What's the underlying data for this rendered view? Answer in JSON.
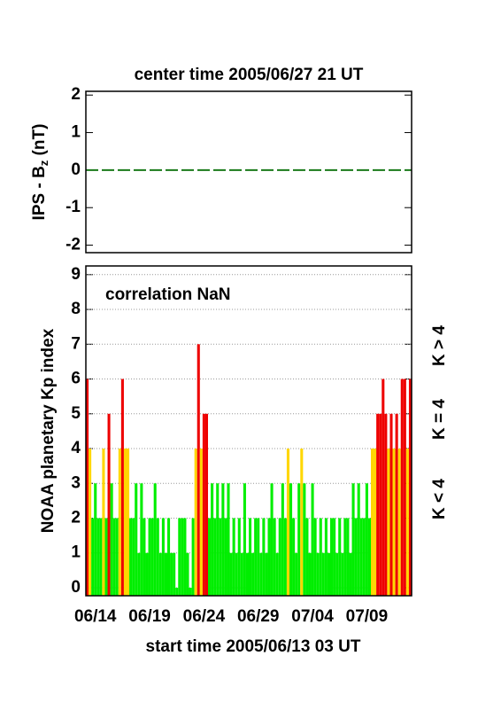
{
  "chart_data": [
    {
      "type": "line",
      "title": "center time 2005/06/27 21 UT",
      "ylabel": {
        "prefix": "IPS - B",
        "sub": "z",
        "suffix": " (nT)"
      },
      "x": [
        0,
        30
      ],
      "series": [
        {
          "color": "#1a7a1a",
          "values": [
            0,
            0
          ]
        }
      ],
      "xlim": [
        0,
        30
      ],
      "ylim": [
        -2.2,
        2.1
      ],
      "yticks": [
        -2,
        -1,
        0,
        1,
        2
      ],
      "grid": false
    },
    {
      "type": "bar",
      "annotation": "correlation NaN",
      "ylabel": "NOAA planetary Kp index",
      "xlabel": "start time 2005/06/13 03 UT",
      "bar_width": 0.25,
      "x": [
        0,
        0.25,
        0.5,
        0.75,
        1,
        1.25,
        1.5,
        1.75,
        2,
        2.25,
        2.5,
        2.75,
        3,
        3.25,
        3.5,
        3.75,
        4,
        4.25,
        4.5,
        4.75,
        5,
        5.25,
        5.5,
        5.75,
        6,
        6.25,
        6.5,
        6.75,
        7,
        7.25,
        7.5,
        7.75,
        8,
        8.25,
        8.5,
        8.75,
        9,
        9.25,
        9.5,
        9.75,
        10,
        10.25,
        10.5,
        10.75,
        11,
        11.25,
        11.5,
        11.75,
        12,
        12.25,
        12.5,
        12.75,
        13,
        13.25,
        13.5,
        13.75,
        14,
        14.25,
        14.5,
        14.75,
        15,
        15.25,
        15.5,
        15.75,
        16,
        16.25,
        16.5,
        16.75,
        17,
        17.25,
        17.5,
        17.75,
        18,
        18.25,
        18.5,
        18.75,
        19,
        19.25,
        19.5,
        19.75,
        20,
        20.25,
        20.5,
        20.75,
        21,
        21.25,
        21.5,
        21.75,
        22,
        22.25,
        22.5,
        22.75,
        23,
        23.25,
        23.5,
        23.75,
        24,
        24.25,
        24.5,
        24.75,
        25,
        25.25,
        25.5,
        25.75,
        26,
        26.25,
        26.5,
        26.75,
        27,
        27.25,
        27.5,
        27.75,
        28,
        28.25,
        28.5,
        28.75,
        29,
        29.25,
        29.5,
        29.75
      ],
      "values": [
        6,
        4,
        2,
        3,
        2,
        2,
        4,
        2,
        5,
        3,
        2,
        2,
        4,
        6,
        4,
        4,
        2,
        2,
        3,
        1,
        3,
        2,
        1,
        2,
        2,
        3,
        2,
        1,
        2,
        1,
        2,
        1,
        1,
        0,
        2,
        2,
        2,
        1,
        0,
        2,
        4,
        7,
        4,
        5,
        5,
        2,
        3,
        2,
        3,
        2,
        3,
        2,
        3,
        1,
        2,
        1,
        2,
        1,
        3,
        1,
        2,
        1,
        2,
        2,
        1,
        2,
        1,
        2,
        3,
        2,
        1,
        2,
        3,
        2,
        4,
        3,
        2,
        1,
        3,
        4,
        3,
        2,
        1,
        3,
        2,
        1,
        2,
        1,
        2,
        1,
        2,
        2,
        1,
        2,
        1,
        2,
        2,
        1,
        3,
        2,
        3,
        2,
        2,
        3,
        2,
        4,
        4,
        5,
        5,
        6,
        5,
        4,
        5,
        4,
        5,
        4,
        6,
        6,
        4,
        6
      ],
      "colors": {
        "low": "#00ee00",
        "mid": "#ffd700",
        "high": "#ee0000"
      },
      "legend": [
        {
          "name": "K > 4",
          "color": "#ee0000"
        },
        {
          "name": "K = 4",
          "color": "#ffd700"
        },
        {
          "name": "K < 4",
          "color": "#00ee00"
        }
      ],
      "xlim": [
        0,
        30
      ],
      "ylim": [
        -0.23,
        9.25
      ],
      "yticks": [
        0,
        1,
        2,
        3,
        4,
        5,
        6,
        7,
        8,
        9
      ],
      "xticks": [
        {
          "value": 0.875,
          "label": "06/14"
        },
        {
          "value": 5.875,
          "label": "06/19"
        },
        {
          "value": 10.875,
          "label": "06/24"
        },
        {
          "value": 15.875,
          "label": "06/29"
        },
        {
          "value": 20.875,
          "label": "07/04"
        },
        {
          "value": 25.875,
          "label": "07/09"
        }
      ],
      "grid": true
    }
  ]
}
